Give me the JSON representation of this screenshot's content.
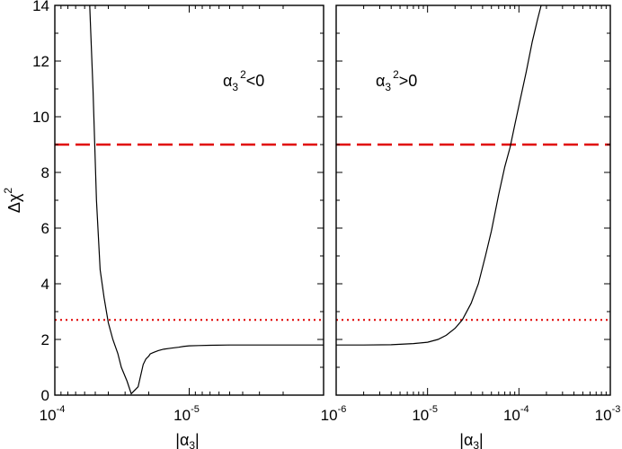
{
  "chart_data": [
    {
      "type": "line",
      "panel": "left",
      "annotation": {
        "base": "α",
        "sub": "3",
        "sup": "2",
        "rel": "<0"
      },
      "xscale": "log",
      "xaxis_reversed": true,
      "xlim": [
        0.0001,
        1e-06
      ],
      "ylim": [
        0,
        14
      ],
      "xlabel": {
        "left": "|α",
        "sub": "3",
        "right": "|"
      },
      "ylabel": {
        "base": "Δχ",
        "sup": "2"
      },
      "x_ticks": [
        {
          "value": 0.0001,
          "base": "10",
          "exp": "-4"
        },
        {
          "value": 1e-05,
          "base": "10",
          "exp": "-5"
        }
      ],
      "y_ticks": [
        0,
        2,
        4,
        6,
        8,
        10,
        12,
        14
      ],
      "reference_lines": [
        {
          "y": 9,
          "style": "dashed",
          "color": "#e00000"
        },
        {
          "y": 2.7,
          "style": "dotted",
          "color": "#e00000"
        }
      ],
      "series": [
        {
          "x": [
            5.5e-05,
            5.4e-05,
            5.2e-05,
            4.9e-05,
            4.6e-05,
            4.3e-05,
            4e-05,
            3.7e-05,
            3.4e-05,
            3.2e-05,
            2.9e-05,
            2.7e-05,
            2.4e-05,
            2.2e-05,
            2.1e-05,
            2e-05,
            1.95e-05,
            1.85e-05,
            1.7e-05,
            1.55e-05,
            1.4e-05,
            1.3e-05,
            1.2e-05,
            1.1e-05,
            1e-05,
            8.5e-06,
            7e-06,
            5e-06,
            3e-06,
            2e-06,
            1e-06
          ],
          "y": [
            14,
            13,
            11,
            7,
            4.5,
            3.5,
            2.6,
            2.0,
            1.5,
            1.0,
            0.5,
            0.05,
            0.3,
            1.1,
            1.3,
            1.4,
            1.48,
            1.53,
            1.6,
            1.65,
            1.68,
            1.7,
            1.72,
            1.75,
            1.77,
            1.78,
            1.79,
            1.8,
            1.8,
            1.8,
            1.8
          ]
        }
      ]
    },
    {
      "type": "line",
      "panel": "right",
      "annotation": {
        "base": "α",
        "sub": "3",
        "sup": "2",
        "rel": ">0"
      },
      "xscale": "log",
      "xlim": [
        1e-06,
        0.001
      ],
      "ylim": [
        0,
        14
      ],
      "xlabel": {
        "left": "|α",
        "sub": "3",
        "right": "|"
      },
      "x_ticks": [
        {
          "value": 1e-06,
          "base": "10",
          "exp": "-6"
        },
        {
          "value": 1e-05,
          "base": "10",
          "exp": "-5"
        },
        {
          "value": 0.0001,
          "base": "10",
          "exp": "-4"
        },
        {
          "value": 0.001,
          "base": "10",
          "exp": "-3"
        }
      ],
      "reference_lines": [
        {
          "y": 9,
          "style": "dashed",
          "color": "#e00000"
        },
        {
          "y": 2.7,
          "style": "dotted",
          "color": "#e00000"
        }
      ],
      "series": [
        {
          "x": [
            1e-06,
            2e-06,
            4e-06,
            7e-06,
            1e-05,
            1.3e-05,
            1.6e-05,
            2e-05,
            2.4e-05,
            3e-05,
            3.6e-05,
            4.3e-05,
            5e-05,
            6e-05,
            7e-05,
            8e-05,
            9e-05,
            0.0001,
            0.00012,
            0.00014,
            0.00016,
            0.000175
          ],
          "y": [
            1.8,
            1.8,
            1.81,
            1.85,
            1.9,
            2.0,
            2.15,
            2.4,
            2.7,
            3.3,
            4.0,
            5.0,
            5.9,
            7.2,
            8.2,
            8.9,
            9.7,
            10.4,
            11.6,
            12.7,
            13.5,
            14
          ]
        }
      ]
    }
  ]
}
